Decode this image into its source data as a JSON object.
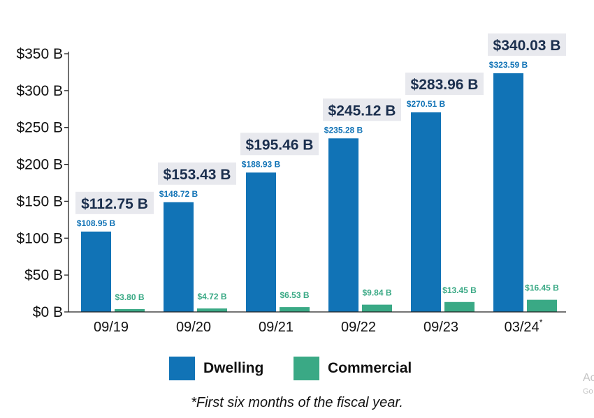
{
  "chart_data": {
    "type": "bar",
    "categories": [
      "09/19",
      "09/20",
      "09/21",
      "09/22",
      "09/23",
      "03/24"
    ],
    "category_superscripts": [
      "",
      "",
      "",
      "",
      "",
      "*"
    ],
    "series": [
      {
        "name": "Dwelling",
        "color": "#1173b6",
        "values": [
          108.95,
          148.72,
          188.93,
          235.28,
          270.51,
          323.59
        ],
        "labels": [
          "$108.95 B",
          "$148.72 B",
          "$188.93 B",
          "$235.28 B",
          "$270.51 B",
          "$323.59 B"
        ]
      },
      {
        "name": "Commercial",
        "color": "#3aa985",
        "values": [
          3.8,
          4.72,
          6.53,
          9.84,
          13.45,
          16.45
        ],
        "labels": [
          "$3.80 B",
          "$4.72 B",
          "$6.53 B",
          "$9.84 B",
          "$13.45 B",
          "$16.45 B"
        ]
      }
    ],
    "totals": [
      112.75,
      153.43,
      195.46,
      245.12,
      283.96,
      340.03
    ],
    "total_labels": [
      "$112.75 B",
      "$153.43 B",
      "$195.46 B",
      "$245.12 B",
      "$283.96 B",
      "$340.03 B"
    ],
    "yticks": [
      0,
      50,
      100,
      150,
      200,
      250,
      300,
      350
    ],
    "ytick_labels": [
      "$0 B",
      "$50 B",
      "$100 B",
      "$150 B",
      "$200 B",
      "$250 B",
      "$300 B",
      "$350 B"
    ],
    "ylim": [
      0,
      350
    ],
    "grid": false,
    "legend_position": "bottom"
  },
  "footnote": "*First six months of the fiscal year.",
  "watermark": {
    "line1": "Activate Windows",
    "line2": "Go to Settings to activate Windows."
  }
}
